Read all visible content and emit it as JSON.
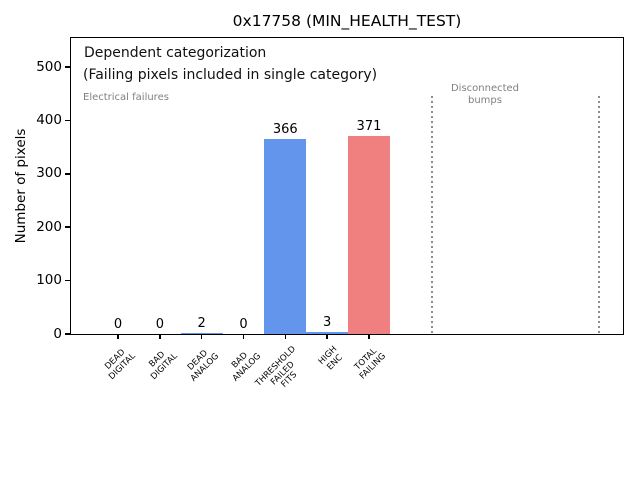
{
  "title": "0x17758 (MIN_HEALTH_TEST)",
  "chart_data": {
    "type": "bar",
    "title": "0x17758 (MIN_HEALTH_TEST)",
    "xlabel": "",
    "ylabel": "Number of pixels",
    "ylim": [
      0,
      555
    ],
    "yticks": [
      0,
      100,
      200,
      300,
      400,
      500
    ],
    "grid": false,
    "legend": "none",
    "categories": [
      "DEAD DIGITAL",
      "BAD DIGITAL",
      "DEAD ANALOG",
      "BAD ANALOG",
      "THRESHOLD FAILED FITS",
      "HIGH ENC",
      "TOTAL FAILING"
    ],
    "category_lines": [
      [
        "DEAD",
        "DIGITAL"
      ],
      [
        "BAD",
        "DIGITAL"
      ],
      [
        "DEAD",
        "ANALOG"
      ],
      [
        "BAD",
        "ANALOG"
      ],
      [
        "THRESHOLD",
        "FAILED",
        "FITS"
      ],
      [
        "HIGH",
        "ENC"
      ],
      [
        "TOTAL",
        "FAILING"
      ]
    ],
    "values": [
      0,
      0,
      2,
      0,
      366,
      3,
      371
    ],
    "value_labels": [
      "0",
      "0",
      "2",
      "0",
      "366",
      "3",
      "371"
    ],
    "bar_colors": [
      "#6495ed",
      "#6495ed",
      "#6495ed",
      "#6495ed",
      "#6495ed",
      "#6495ed",
      "#f08080"
    ],
    "annotations": {
      "dependent_line1": "Dependent categorization",
      "dependent_line2": "(Failing pixels included in single category)",
      "electrical_failures": "Electrical failures",
      "disconnected_line1": "Disconnected",
      "disconnected_line2": "bumps"
    },
    "colors": {
      "bar_blue": "#6495ed",
      "bar_red": "#f08080",
      "annotation_gray": "#808080",
      "dotted_line_gray": "#8c8c8c",
      "axis_black": "#000000"
    }
  }
}
